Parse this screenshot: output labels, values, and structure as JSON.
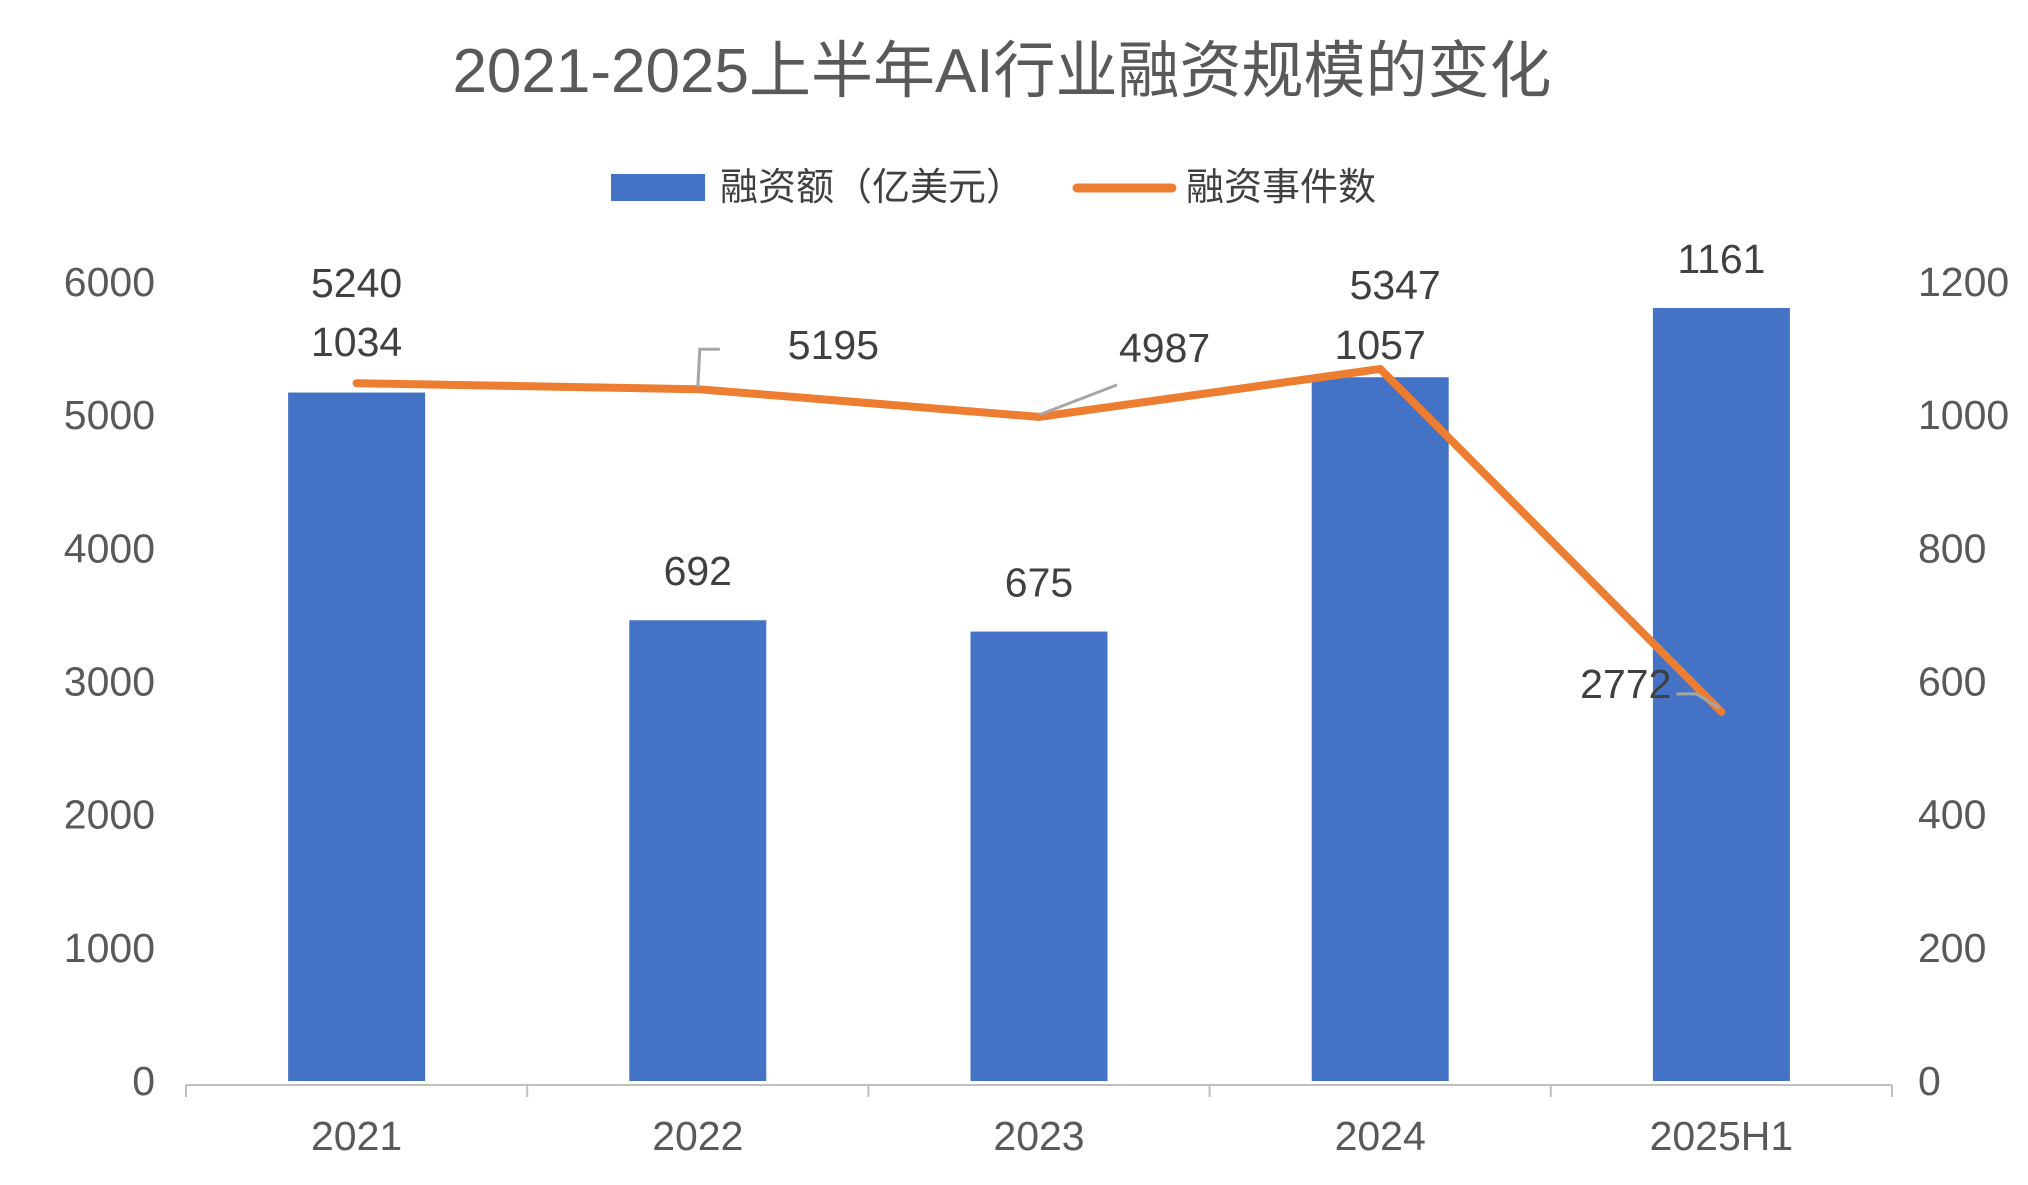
{
  "chart_data": {
    "type": "bar+line",
    "title": "2021-2025上半年AI行业融资规模的变化",
    "categories": [
      "2021",
      "2022",
      "2023",
      "2024",
      "2025H1"
    ],
    "series": [
      {
        "name": "融资额（亿美元）",
        "type": "bar",
        "axis": "right",
        "color": "#4472C4",
        "values": [
          1034,
          692,
          675,
          1057,
          1161
        ]
      },
      {
        "name": "融资事件数",
        "type": "line",
        "axis": "left",
        "color": "#ED7D31",
        "values": [
          5240,
          5195,
          4987,
          5347,
          2772
        ]
      }
    ],
    "left_axis": {
      "ylim": [
        0,
        6000
      ],
      "ticks": [
        "0",
        "1000",
        "2000",
        "3000",
        "4000",
        "5000",
        "6000"
      ]
    },
    "right_axis": {
      "ylim": [
        0,
        1200
      ],
      "ticks": [
        "0",
        "200",
        "400",
        "600",
        "800",
        "1000",
        "1200"
      ]
    },
    "grid": false,
    "legend_position": "top"
  }
}
